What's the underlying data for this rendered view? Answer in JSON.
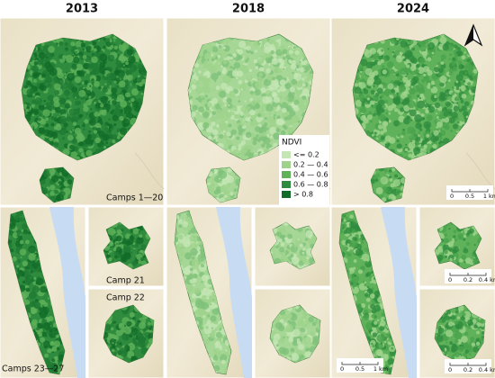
{
  "years": [
    "2013",
    "2018",
    "2024"
  ],
  "legend": {
    "title": "NDVI",
    "items": [
      {
        "label": "<= 0.2",
        "color": "#c4e6b4"
      },
      {
        "label": "0.2 — 0.4",
        "color": "#9fd38c"
      },
      {
        "label": "0.4 — 0.6",
        "color": "#5fb25a"
      },
      {
        "label": "0.6 — 0.8",
        "color": "#2f8c3e"
      },
      {
        "label": "> 0.8",
        "color": "#126b28"
      }
    ]
  },
  "panel_labels": {
    "main": "Camps 1—20",
    "camp21": "Camp 21",
    "camp22": "Camp 22",
    "south": "Camps 23—27"
  },
  "scale_bars": [
    {
      "labels": [
        "0",
        "0.5",
        "1 km"
      ]
    },
    {
      "labels": [
        "0",
        "0.2",
        "0.4 km"
      ]
    }
  ]
}
